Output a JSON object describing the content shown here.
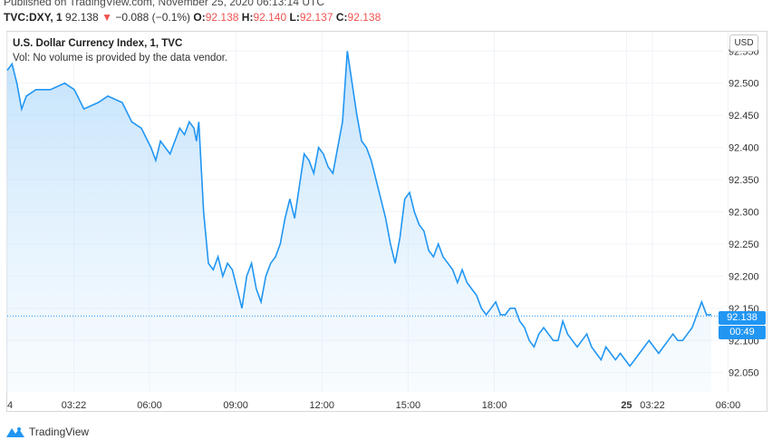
{
  "header": {
    "published": "Published on TradingView.com, November 25, 2020 06:13:14 UTC",
    "symbol": "TVC:DXY, 1",
    "last": "92.138",
    "change": "−0.088 (−0.1%)",
    "o_label": "O:",
    "o": "92.138",
    "h_label": "H:",
    "h": "92.140",
    "l_label": "L:",
    "l": "92.137",
    "c_label": "C:",
    "c": "92.138"
  },
  "chart_title": "U.S. Dollar Currency Index, 1, TVC",
  "volume_note": "Vol: No volume is provided by the data vendor.",
  "currency_button": "USD",
  "price_tag": "92.138",
  "countdown_tag": "00:49",
  "footer_logo": "TradingView",
  "colors": {
    "line": "#2196f3",
    "fill": "#bbdefb",
    "down": "#ef5350",
    "grid": "#f0f3fa"
  },
  "chart_data": {
    "type": "area",
    "title": "U.S. Dollar Currency Index, 1, TVC",
    "xlabel": "",
    "ylabel": "",
    "ylim": [
      92.02,
      92.58
    ],
    "xlim": [
      0,
      1470
    ],
    "y_ticks": [
      "92.050",
      "92.100",
      "92.150",
      "92.200",
      "92.250",
      "92.300",
      "92.350",
      "92.400",
      "92.450",
      "92.500",
      "92.550"
    ],
    "x_ticks": [
      {
        "label": "4",
        "x": 0
      },
      {
        "label": "03:22",
        "x": 139
      },
      {
        "label": "06:00",
        "x": 297
      },
      {
        "label": "09:00",
        "x": 477
      },
      {
        "label": "12:00",
        "x": 657
      },
      {
        "label": "15:00",
        "x": 837
      },
      {
        "label": "18:00",
        "x": 1017
      },
      {
        "label": "25",
        "x": 1293
      },
      {
        "label": "03:22",
        "x": 1347
      },
      {
        "label": "06:00",
        "x": 1505
      }
    ],
    "current_price": 92.138,
    "series": [
      {
        "name": "",
        "x": [
          0,
          10,
          20,
          30,
          40,
          60,
          90,
          120,
          140,
          160,
          190,
          210,
          240,
          260,
          280,
          300,
          310,
          320,
          340,
          350,
          360,
          370,
          380,
          390,
          395,
          400,
          410,
          420,
          430,
          440,
          450,
          460,
          470,
          480,
          490,
          500,
          510,
          520,
          530,
          540,
          550,
          560,
          570,
          580,
          590,
          600,
          610,
          620,
          630,
          640,
          650,
          660,
          670,
          680,
          690,
          700,
          710,
          720,
          730,
          740,
          750,
          760,
          770,
          780,
          790,
          800,
          810,
          820,
          830,
          840,
          850,
          860,
          870,
          880,
          890,
          900,
          910,
          920,
          930,
          940,
          950,
          960,
          970,
          980,
          990,
          1000,
          1010,
          1020,
          1030,
          1040,
          1050,
          1060,
          1070,
          1080,
          1090,
          1100,
          1110,
          1120,
          1130,
          1140,
          1150,
          1160,
          1170,
          1180,
          1190,
          1200,
          1210,
          1220,
          1230,
          1240,
          1250,
          1260,
          1270,
          1280,
          1290,
          1300,
          1310,
          1320,
          1330,
          1340,
          1350,
          1360,
          1370,
          1380,
          1390,
          1400,
          1410,
          1420,
          1430,
          1440,
          1450,
          1460,
          1470
        ],
        "values": [
          92.52,
          92.53,
          92.5,
          92.46,
          92.48,
          92.49,
          92.49,
          92.5,
          92.49,
          92.46,
          92.47,
          92.48,
          92.47,
          92.44,
          92.43,
          92.4,
          92.38,
          92.41,
          92.39,
          92.41,
          92.43,
          92.42,
          92.44,
          92.43,
          92.41,
          92.44,
          92.3,
          92.22,
          92.21,
          92.23,
          92.2,
          92.22,
          92.21,
          92.18,
          92.15,
          92.2,
          92.22,
          92.18,
          92.16,
          92.2,
          92.22,
          92.23,
          92.25,
          92.29,
          92.32,
          92.29,
          92.34,
          92.39,
          92.38,
          92.36,
          92.4,
          92.39,
          92.37,
          92.36,
          92.4,
          92.44,
          92.55,
          92.5,
          92.45,
          92.41,
          92.4,
          92.38,
          92.35,
          92.32,
          92.29,
          92.25,
          92.22,
          92.26,
          92.32,
          92.33,
          92.3,
          92.28,
          92.27,
          92.24,
          92.23,
          92.25,
          92.23,
          92.22,
          92.21,
          92.19,
          92.21,
          92.19,
          92.18,
          92.17,
          92.15,
          92.14,
          92.15,
          92.16,
          92.14,
          92.14,
          92.15,
          92.15,
          92.13,
          92.12,
          92.1,
          92.09,
          92.11,
          92.12,
          92.11,
          92.1,
          92.1,
          92.13,
          92.11,
          92.1,
          92.09,
          92.1,
          92.11,
          92.09,
          92.08,
          92.07,
          92.09,
          92.08,
          92.07,
          92.08,
          92.07,
          92.06,
          92.07,
          92.08,
          92.09,
          92.1,
          92.09,
          92.08,
          92.09,
          92.1,
          92.11,
          92.1,
          92.1,
          92.11,
          92.12,
          92.14,
          92.16,
          92.14,
          92.14
        ]
      }
    ]
  }
}
